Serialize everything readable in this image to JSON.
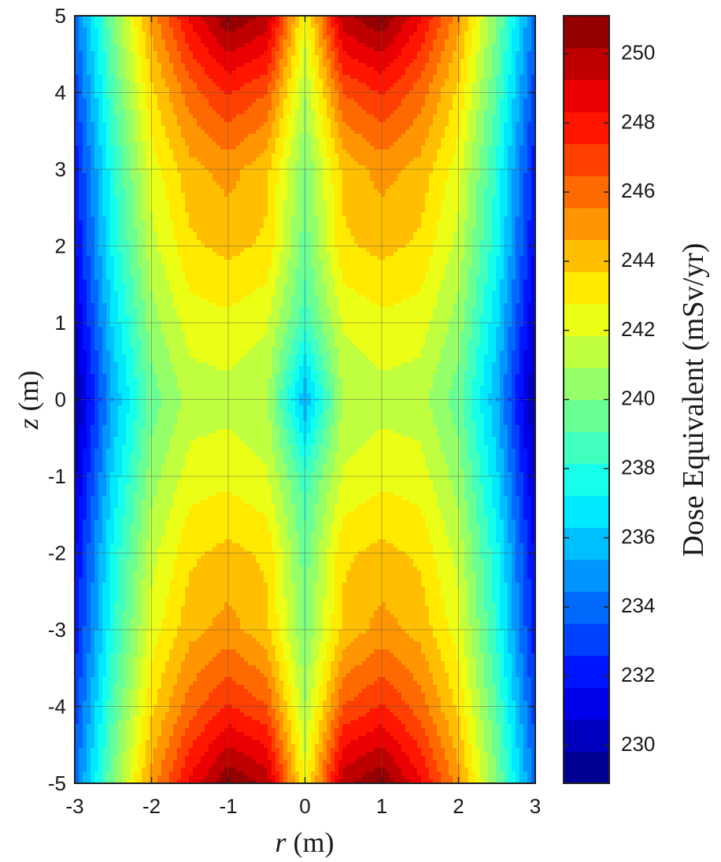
{
  "chart_data": {
    "type": "heatmap",
    "subtype": "filled-contour",
    "colormap": "jet",
    "grid": true,
    "x": {
      "var": "r",
      "unit": "(m)",
      "lim": [
        -3,
        3
      ],
      "ticks": [
        "-3",
        "-2",
        "-1",
        "0",
        "1",
        "2",
        "3"
      ]
    },
    "y": {
      "var": "z",
      "unit": "(m)",
      "lim": [
        -5,
        5
      ],
      "ticks": [
        "5",
        "4",
        "3",
        "2",
        "1",
        "0",
        "-1",
        "-2",
        "-3",
        "-4",
        "-5"
      ]
    },
    "colorbar": {
      "label": "Dose Equivalent (mSv/yr)",
      "lim": [
        228.9,
        251.1
      ],
      "ticks": [
        "250",
        "248",
        "246",
        "244",
        "242",
        "240",
        "238",
        "236",
        "234",
        "232",
        "230"
      ],
      "position": "right"
    },
    "field_samples": {
      "r_abs": [
        0,
        0.5,
        1,
        1.5,
        2,
        2.5,
        3
      ],
      "z_abs": [
        0,
        1,
        2,
        3,
        4,
        5
      ],
      "values": [
        [
          235.5,
          241.0,
          241.5,
          241.3,
          239.5,
          235.5,
          229.5
        ],
        [
          238.5,
          242.0,
          242.5,
          242.3,
          240.5,
          236.5,
          230.5
        ],
        [
          239.5,
          243.5,
          244.0,
          243.5,
          241.5,
          237.5,
          231.5
        ],
        [
          240.0,
          244.0,
          245.0,
          244.3,
          242.3,
          238.0,
          232.0
        ],
        [
          241.0,
          246.5,
          247.5,
          246.0,
          243.5,
          239.0,
          233.0
        ],
        [
          242.5,
          250.0,
          251.0,
          248.5,
          245.0,
          240.0,
          234.0
        ]
      ]
    }
  }
}
